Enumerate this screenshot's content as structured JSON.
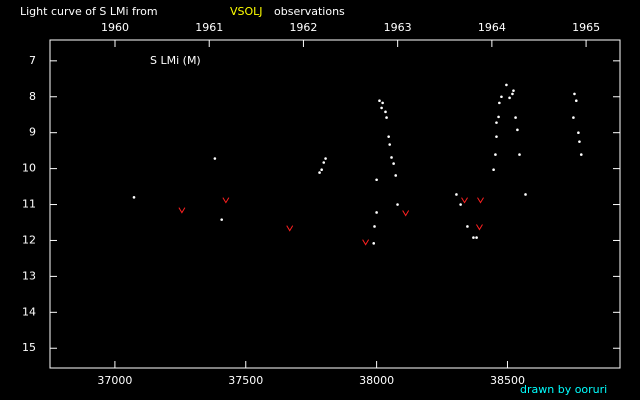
{
  "chart_data": {
    "type": "scatter",
    "title_parts": [
      "Light curve of S LMi from",
      "VSOLJ",
      "observations"
    ],
    "annotation": "S LMi (M)",
    "credit": "drawn by ooruri",
    "xlim": [
      36752,
      38930
    ],
    "xticks": [
      37000,
      37500,
      38000,
      38500
    ],
    "x2lim": [
      1959.31,
      1965.36
    ],
    "x2ticks": [
      1960,
      1961,
      1962,
      1963,
      1964,
      1965
    ],
    "ylim": [
      6.42,
      15.55
    ],
    "y_inverted": true,
    "yticks": [
      7,
      8,
      9,
      10,
      11,
      12,
      13,
      14,
      15
    ],
    "series": [
      {
        "color": "#ffffff",
        "marker": "dot",
        "x": [
          37073,
          37382,
          37408,
          37782,
          37790,
          37798,
          37805,
          37989,
          37992,
          38000,
          38000,
          38011,
          38019,
          38023,
          38034,
          38038,
          38046,
          38050,
          38057,
          38065,
          38073,
          38080,
          38305,
          38321,
          38347,
          38370,
          38382,
          38447,
          38454,
          38458,
          38458,
          38466,
          38469,
          38477,
          38496,
          38508,
          38519,
          38523,
          38531,
          38538,
          38546,
          38569,
          38752,
          38756,
          38763,
          38771,
          38775,
          38782
        ],
        "values": [
          10.8,
          9.72,
          11.42,
          10.11,
          10.03,
          9.83,
          9.72,
          12.08,
          11.61,
          11.22,
          10.31,
          8.11,
          8.31,
          8.17,
          8.42,
          8.58,
          9.11,
          9.33,
          9.69,
          9.86,
          10.19,
          11.0,
          10.72,
          11.0,
          11.61,
          11.92,
          11.92,
          10.03,
          9.61,
          9.11,
          8.72,
          8.56,
          8.17,
          8.0,
          7.67,
          8.03,
          7.92,
          7.83,
          8.58,
          8.92,
          9.61,
          10.72,
          8.58,
          7.92,
          8.11,
          9.0,
          9.25,
          9.61
        ]
      },
      {
        "color": "#ff2020",
        "marker": "v",
        "x": [
          37256,
          37424,
          37668,
          37958,
          38111,
          38336,
          38397,
          38393
        ],
        "values": [
          11.17,
          10.89,
          11.67,
          12.06,
          11.25,
          10.89,
          10.89,
          11.64
        ]
      }
    ]
  }
}
